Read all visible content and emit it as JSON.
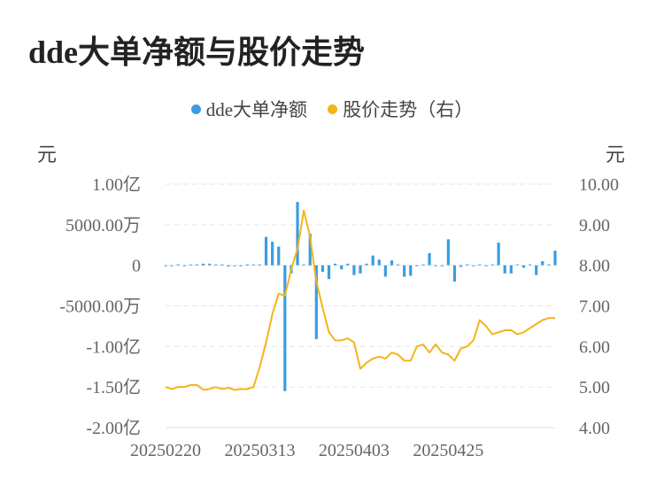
{
  "title": "dde大单净额与股价走势",
  "colors": {
    "bar": "#3a9de0",
    "line": "#f4b41a",
    "grid": "#e6e6e6"
  },
  "chart_data": {
    "type": "bar+line",
    "title": "dde大单净额与股价走势",
    "legend": [
      {
        "name": "dde大单净额",
        "color": "#3a9de0",
        "marker": "dot"
      },
      {
        "name": "股价走势（右）",
        "color": "#f4b41a",
        "marker": "dot"
      }
    ],
    "legend_position": "top-center",
    "y_left": {
      "unit": "元",
      "range": [
        -200000000,
        100000000
      ],
      "ticks": [
        100000000,
        50000000,
        0,
        -50000000,
        -100000000,
        -150000000,
        -200000000
      ],
      "tick_labels": [
        "1.00亿",
        "5000.00万",
        "0",
        "-5000.00万",
        "-1.00亿",
        "-1.50亿",
        "-2.00亿"
      ]
    },
    "y_right": {
      "unit": "元",
      "range": [
        4,
        10
      ],
      "ticks": [
        10,
        9,
        8,
        7,
        6,
        5,
        4
      ],
      "tick_labels": [
        "10.00",
        "9.00",
        "8.00",
        "7.00",
        "6.00",
        "5.00",
        "4.00"
      ]
    },
    "x_tick_labels": [
      {
        "index": 0,
        "label": "20250220"
      },
      {
        "index": 15,
        "label": "20250313"
      },
      {
        "index": 30,
        "label": "20250403"
      },
      {
        "index": 45,
        "label": "20250425"
      }
    ],
    "grid": true,
    "series": [
      {
        "name": "dde大单净额",
        "type": "bar",
        "axis": "left",
        "values": [
          -1000000,
          -500000,
          0,
          -500000,
          0,
          0,
          2000000,
          2000000,
          0,
          0,
          -1500000,
          -500000,
          -1000000,
          0,
          1000000,
          0,
          35000000,
          29000000,
          23000000,
          -155000000,
          -10000000,
          78000000,
          0,
          39000000,
          -91000000,
          -8000000,
          -17000000,
          2000000,
          -5000000,
          2000000,
          -12000000,
          -10000000,
          2000000,
          12000000,
          7000000,
          -14000000,
          6000000,
          0,
          -14000000,
          -13000000,
          -1000000,
          0,
          15000000,
          -1000000,
          -1000000,
          32000000,
          -20000000,
          -2000000,
          0,
          -1000000,
          0,
          -1000000,
          0,
          28000000,
          -10000000,
          -10000000,
          0,
          -3000000,
          0,
          -12000000,
          5000000,
          0,
          18000000
        ]
      },
      {
        "name": "股价走势（右）",
        "type": "line",
        "axis": "right",
        "values": [
          5.0,
          4.95,
          5.0,
          5.0,
          5.05,
          5.05,
          4.93,
          4.95,
          5.0,
          4.95,
          4.98,
          4.93,
          4.95,
          4.95,
          5.0,
          5.5,
          6.1,
          6.8,
          7.3,
          7.25,
          7.9,
          8.4,
          9.35,
          8.7,
          7.6,
          6.95,
          6.35,
          6.15,
          6.15,
          6.2,
          6.1,
          5.45,
          5.6,
          5.7,
          5.75,
          5.7,
          5.85,
          5.8,
          5.65,
          5.65,
          6.0,
          6.05,
          5.85,
          6.05,
          5.85,
          5.8,
          5.65,
          5.95,
          6.0,
          6.15,
          6.65,
          6.5,
          6.3,
          6.35,
          6.4,
          6.4,
          6.3,
          6.35,
          6.45,
          6.55,
          6.65,
          6.7,
          6.7
        ]
      }
    ]
  }
}
